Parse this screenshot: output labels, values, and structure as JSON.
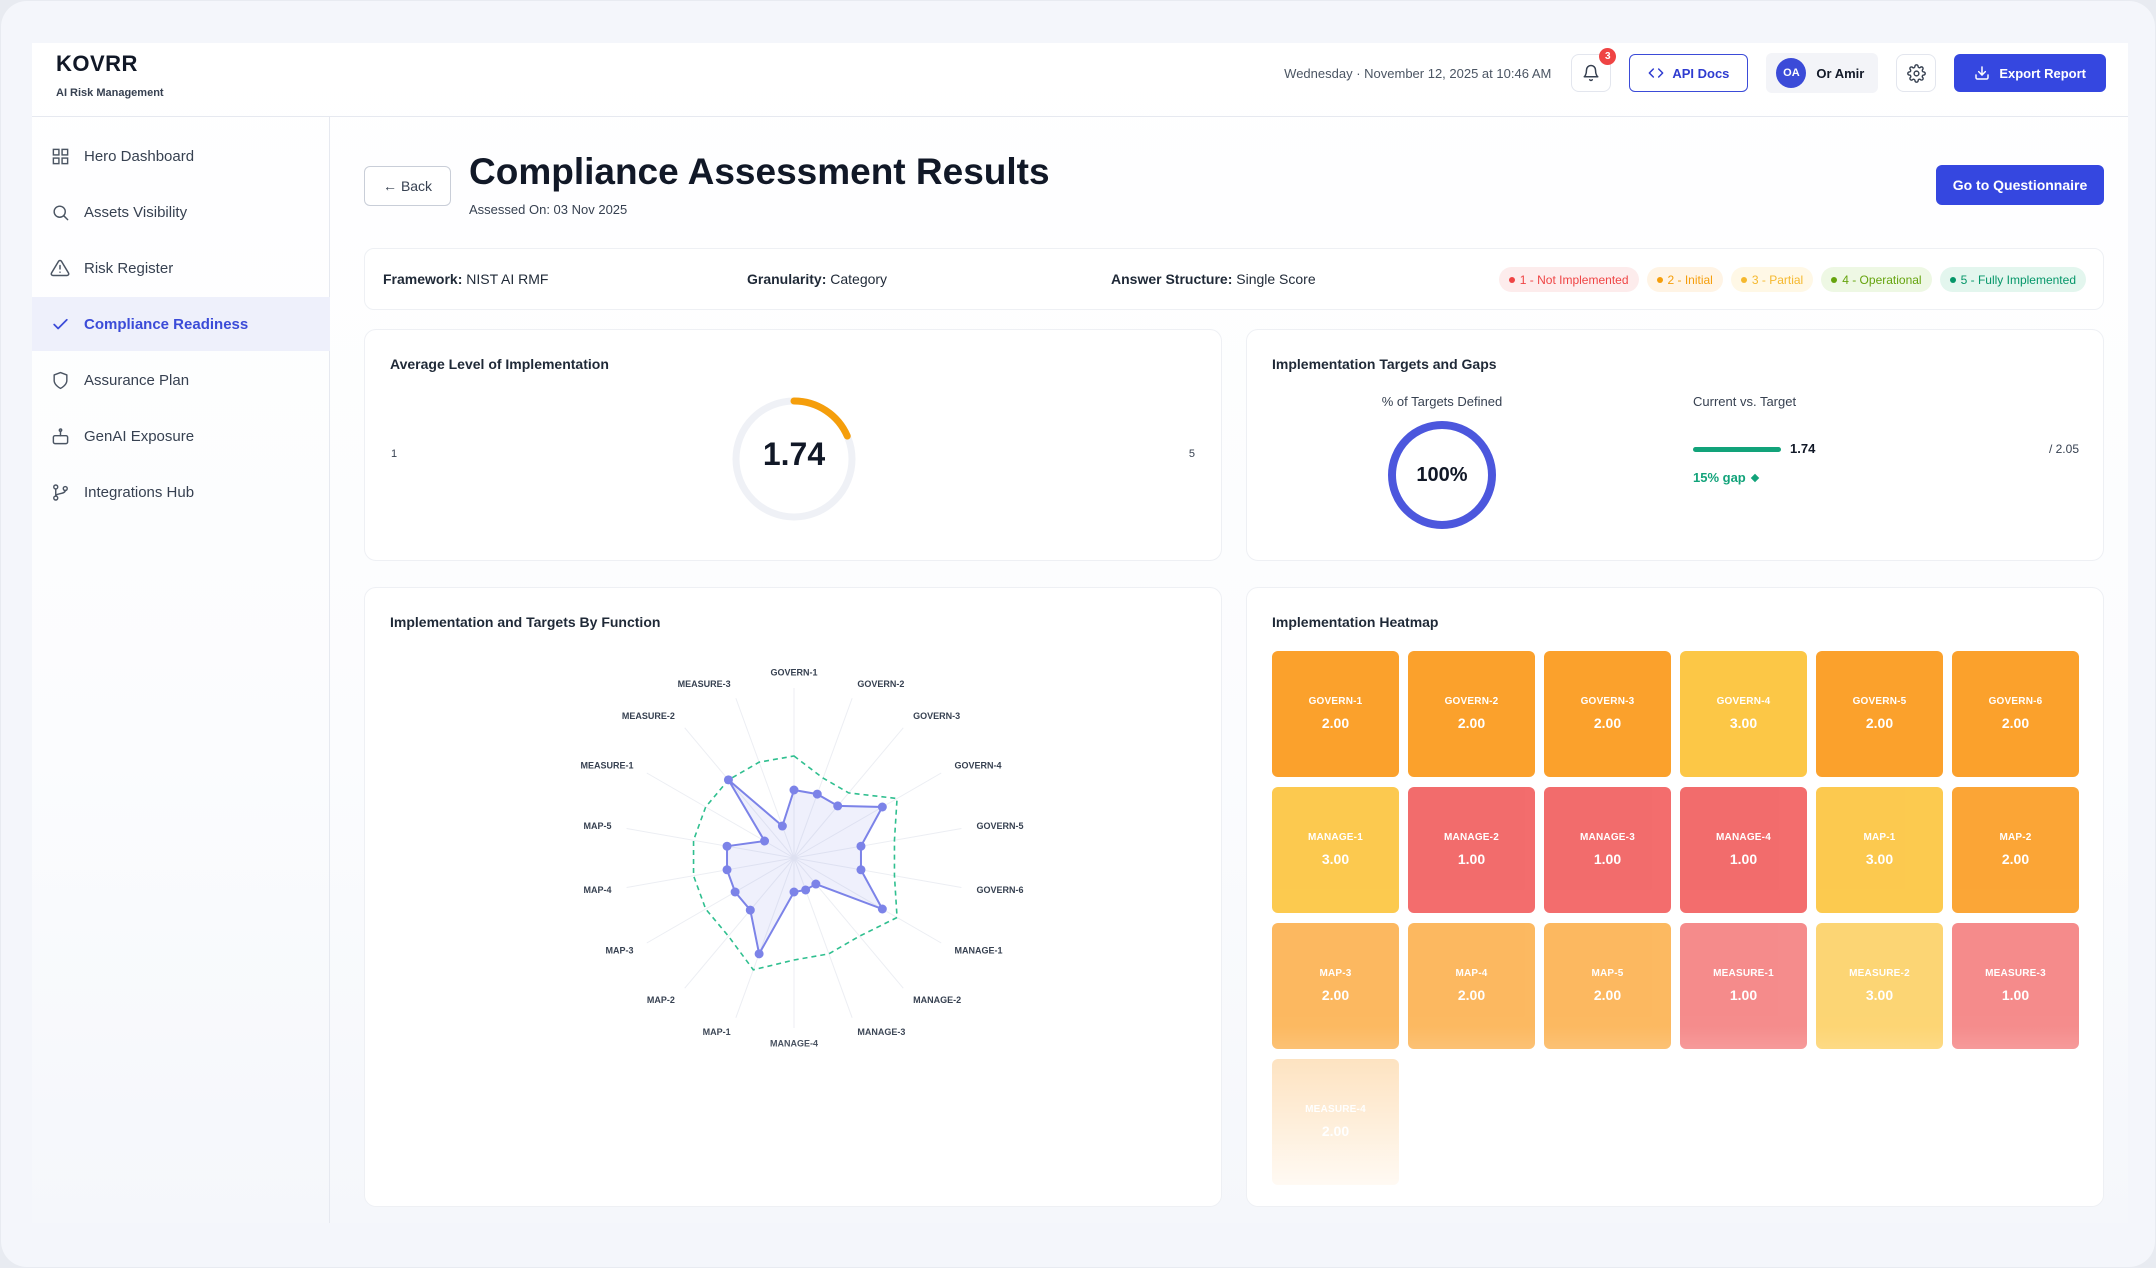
{
  "brand": {
    "name": "KOVRR",
    "subtitle": "AI Risk Management"
  },
  "header": {
    "datetime": "Wednesday · November 12, 2025 at 10:46 AM",
    "notification_count": "3",
    "api_docs_label": "API Docs",
    "user_initials": "OA",
    "user_name": "Or Amir",
    "export_label": "Export Report"
  },
  "sidebar": {
    "items": [
      {
        "label": "Hero Dashboard",
        "icon": "grid-icon"
      },
      {
        "label": "Assets Visibility",
        "icon": "search-icon"
      },
      {
        "label": "Risk Register",
        "icon": "warning-icon"
      },
      {
        "label": "Compliance Readiness",
        "icon": "check-icon",
        "active": true
      },
      {
        "label": "Assurance Plan",
        "icon": "shield-icon"
      },
      {
        "label": "GenAI Exposure",
        "icon": "robot-icon"
      },
      {
        "label": "Integrations Hub",
        "icon": "branch-icon"
      }
    ]
  },
  "page": {
    "back_label": "Back",
    "title": "Compliance Assessment Results",
    "assessed_label": "Assessed On: 03 Nov 2025",
    "questionnaire_label": "Go to Questionnaire"
  },
  "info": {
    "framework_label": "Framework:",
    "framework_value": "NIST AI RMF",
    "granularity_label": "Granularity:",
    "granularity_value": "Category",
    "structure_label": "Answer Structure:",
    "structure_value": "Single Score",
    "legend": [
      {
        "label": "1 - Not Implemented",
        "color": "#ef4444",
        "bg": "#fdecec"
      },
      {
        "label": "2 - Initial",
        "color": "#f59e0b",
        "bg": "#fff4e5"
      },
      {
        "label": "3 - Partial",
        "color": "#f5b82e",
        "bg": "#fff8e6"
      },
      {
        "label": "4 - Operational",
        "color": "#65a30d",
        "bg": "#eef8e4"
      },
      {
        "label": "5 - Fully Implemented",
        "color": "#059669",
        "bg": "#e3f6ee"
      }
    ]
  },
  "avg_card": {
    "title": "Average Level of Implementation",
    "value": "1.74",
    "min_label": "1",
    "max_label": "5",
    "level": 1.74,
    "scale_min": 1,
    "scale_max": 5
  },
  "targets_card": {
    "title": "Implementation Targets and Gaps",
    "pct_label": "% of Targets Defined",
    "pct_value": "100%",
    "cvt_label": "Current vs. Target",
    "current_value": "1.74",
    "target_value": "/ 2.05",
    "gap_label": "15% gap",
    "current": 1.74,
    "target": 2.05
  },
  "radar_card": {
    "title": "Implementation and Targets By Function"
  },
  "heatmap": {
    "title": "Implementation Heatmap"
  },
  "chart_data": [
    {
      "type": "radar",
      "title": "Implementation and Targets By Function",
      "categories": [
        "GOVERN-1",
        "GOVERN-2",
        "GOVERN-3",
        "GOVERN-4",
        "GOVERN-5",
        "GOVERN-6",
        "MANAGE-1",
        "MANAGE-2",
        "MANAGE-3",
        "MANAGE-4",
        "MAP-1",
        "MAP-2",
        "MAP-3",
        "MAP-4",
        "MAP-5",
        "MEASURE-1",
        "MEASURE-2",
        "MEASURE-3"
      ],
      "rlim": [
        0,
        5
      ],
      "series": [
        {
          "name": "",
          "values": [
            2,
            2,
            2,
            3,
            2,
            2,
            3,
            1,
            1,
            1,
            3,
            2,
            2,
            2,
            2,
            1,
            3,
            1
          ],
          "color": "#7c83e8"
        },
        {
          "name": "",
          "values": [
            3,
            2.5,
            2.5,
            3.5,
            3,
            3,
            3.5,
            3,
            3,
            3,
            3.5,
            3,
            3,
            3,
            3,
            3,
            3,
            3
          ],
          "color": "#2fbf8f",
          "dashed": true
        }
      ]
    },
    {
      "type": "heatmap",
      "title": "Implementation Heatmap",
      "cells": [
        {
          "label": "GOVERN-1",
          "value": "2.00"
        },
        {
          "label": "GOVERN-2",
          "value": "2.00"
        },
        {
          "label": "GOVERN-3",
          "value": "2.00"
        },
        {
          "label": "GOVERN-4",
          "value": "3.00"
        },
        {
          "label": "GOVERN-5",
          "value": "2.00"
        },
        {
          "label": "GOVERN-6",
          "value": "2.00"
        },
        {
          "label": "MANAGE-1",
          "value": "3.00"
        },
        {
          "label": "MANAGE-2",
          "value": "1.00"
        },
        {
          "label": "MANAGE-3",
          "value": "1.00"
        },
        {
          "label": "MANAGE-4",
          "value": "1.00"
        },
        {
          "label": "MAP-1",
          "value": "3.00"
        },
        {
          "label": "MAP-2",
          "value": "2.00"
        },
        {
          "label": "MAP-3",
          "value": "2.00"
        },
        {
          "label": "MAP-4",
          "value": "2.00"
        },
        {
          "label": "MAP-5",
          "value": "2.00"
        },
        {
          "label": "MEASURE-1",
          "value": "1.00"
        },
        {
          "label": "MEASURE-2",
          "value": "3.00"
        },
        {
          "label": "MEASURE-3",
          "value": "1.00"
        },
        {
          "label": "MEASURE-4",
          "value": "2.00"
        }
      ],
      "colors": {
        "1.00": "#f26565",
        "2.00": "#fba12c",
        "3.00": "#fcc746"
      }
    }
  ]
}
